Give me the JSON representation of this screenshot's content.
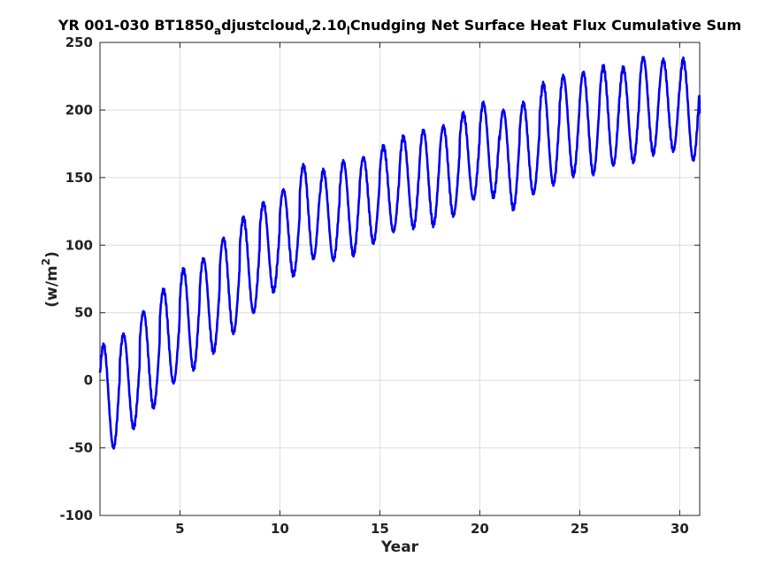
{
  "chart_data": {
    "type": "line",
    "title_parts": {
      "main1": "YR 001-030 BT1850",
      "sub1": "a",
      "main2": "djustcloud",
      "sub2": "v",
      "main3": "2.10",
      "sub3": "l",
      "main4": "Cnudging Net Surface Heat Flux  Cumulative Sum"
    },
    "xlabel": "Year",
    "ylabel_parts": {
      "main": "(w/m",
      "sup": "2",
      "close": ")"
    },
    "xlim": [
      1,
      31
    ],
    "ylim": [
      -100,
      250
    ],
    "xticks": [
      5,
      10,
      15,
      20,
      25,
      30
    ],
    "yticks": [
      -100,
      -50,
      0,
      50,
      100,
      150,
      200,
      250
    ],
    "grid": true,
    "line_color": "#0000ee",
    "annual_extrema": [
      {
        "year": 1,
        "max": 26,
        "min": -50
      },
      {
        "year": 2,
        "max": 34,
        "min": -35
      },
      {
        "year": 3,
        "max": 51,
        "min": -20
      },
      {
        "year": 4,
        "max": 67,
        "min": -2
      },
      {
        "year": 5,
        "max": 82,
        "min": 8
      },
      {
        "year": 6,
        "max": 90,
        "min": 21
      },
      {
        "year": 7,
        "max": 105,
        "min": 35
      },
      {
        "year": 8,
        "max": 120,
        "min": 50
      },
      {
        "year": 9,
        "max": 131,
        "min": 66
      },
      {
        "year": 10,
        "max": 141,
        "min": 78
      },
      {
        "year": 11,
        "max": 159,
        "min": 90
      },
      {
        "year": 12,
        "max": 155,
        "min": 89
      },
      {
        "year": 13,
        "max": 162,
        "min": 93
      },
      {
        "year": 14,
        "max": 165,
        "min": 102
      },
      {
        "year": 15,
        "max": 173,
        "min": 110
      },
      {
        "year": 16,
        "max": 180,
        "min": 113
      },
      {
        "year": 17,
        "max": 185,
        "min": 115
      },
      {
        "year": 18,
        "max": 188,
        "min": 122
      },
      {
        "year": 19,
        "max": 197,
        "min": 134
      },
      {
        "year": 20,
        "max": 205,
        "min": 136
      },
      {
        "year": 21,
        "max": 200,
        "min": 127
      },
      {
        "year": 22,
        "max": 205,
        "min": 138
      },
      {
        "year": 23,
        "max": 219,
        "min": 145
      },
      {
        "year": 24,
        "max": 225,
        "min": 152
      },
      {
        "year": 25,
        "max": 228,
        "min": 153
      },
      {
        "year": 26,
        "max": 232,
        "min": 159
      },
      {
        "year": 27,
        "max": 231,
        "min": 162
      },
      {
        "year": 28,
        "max": 239,
        "min": 168
      },
      {
        "year": 29,
        "max": 237,
        "min": 170
      },
      {
        "year": 30,
        "max": 237,
        "min": 163
      },
      {
        "year": 31,
        "max": 210,
        "min": 168
      }
    ]
  }
}
